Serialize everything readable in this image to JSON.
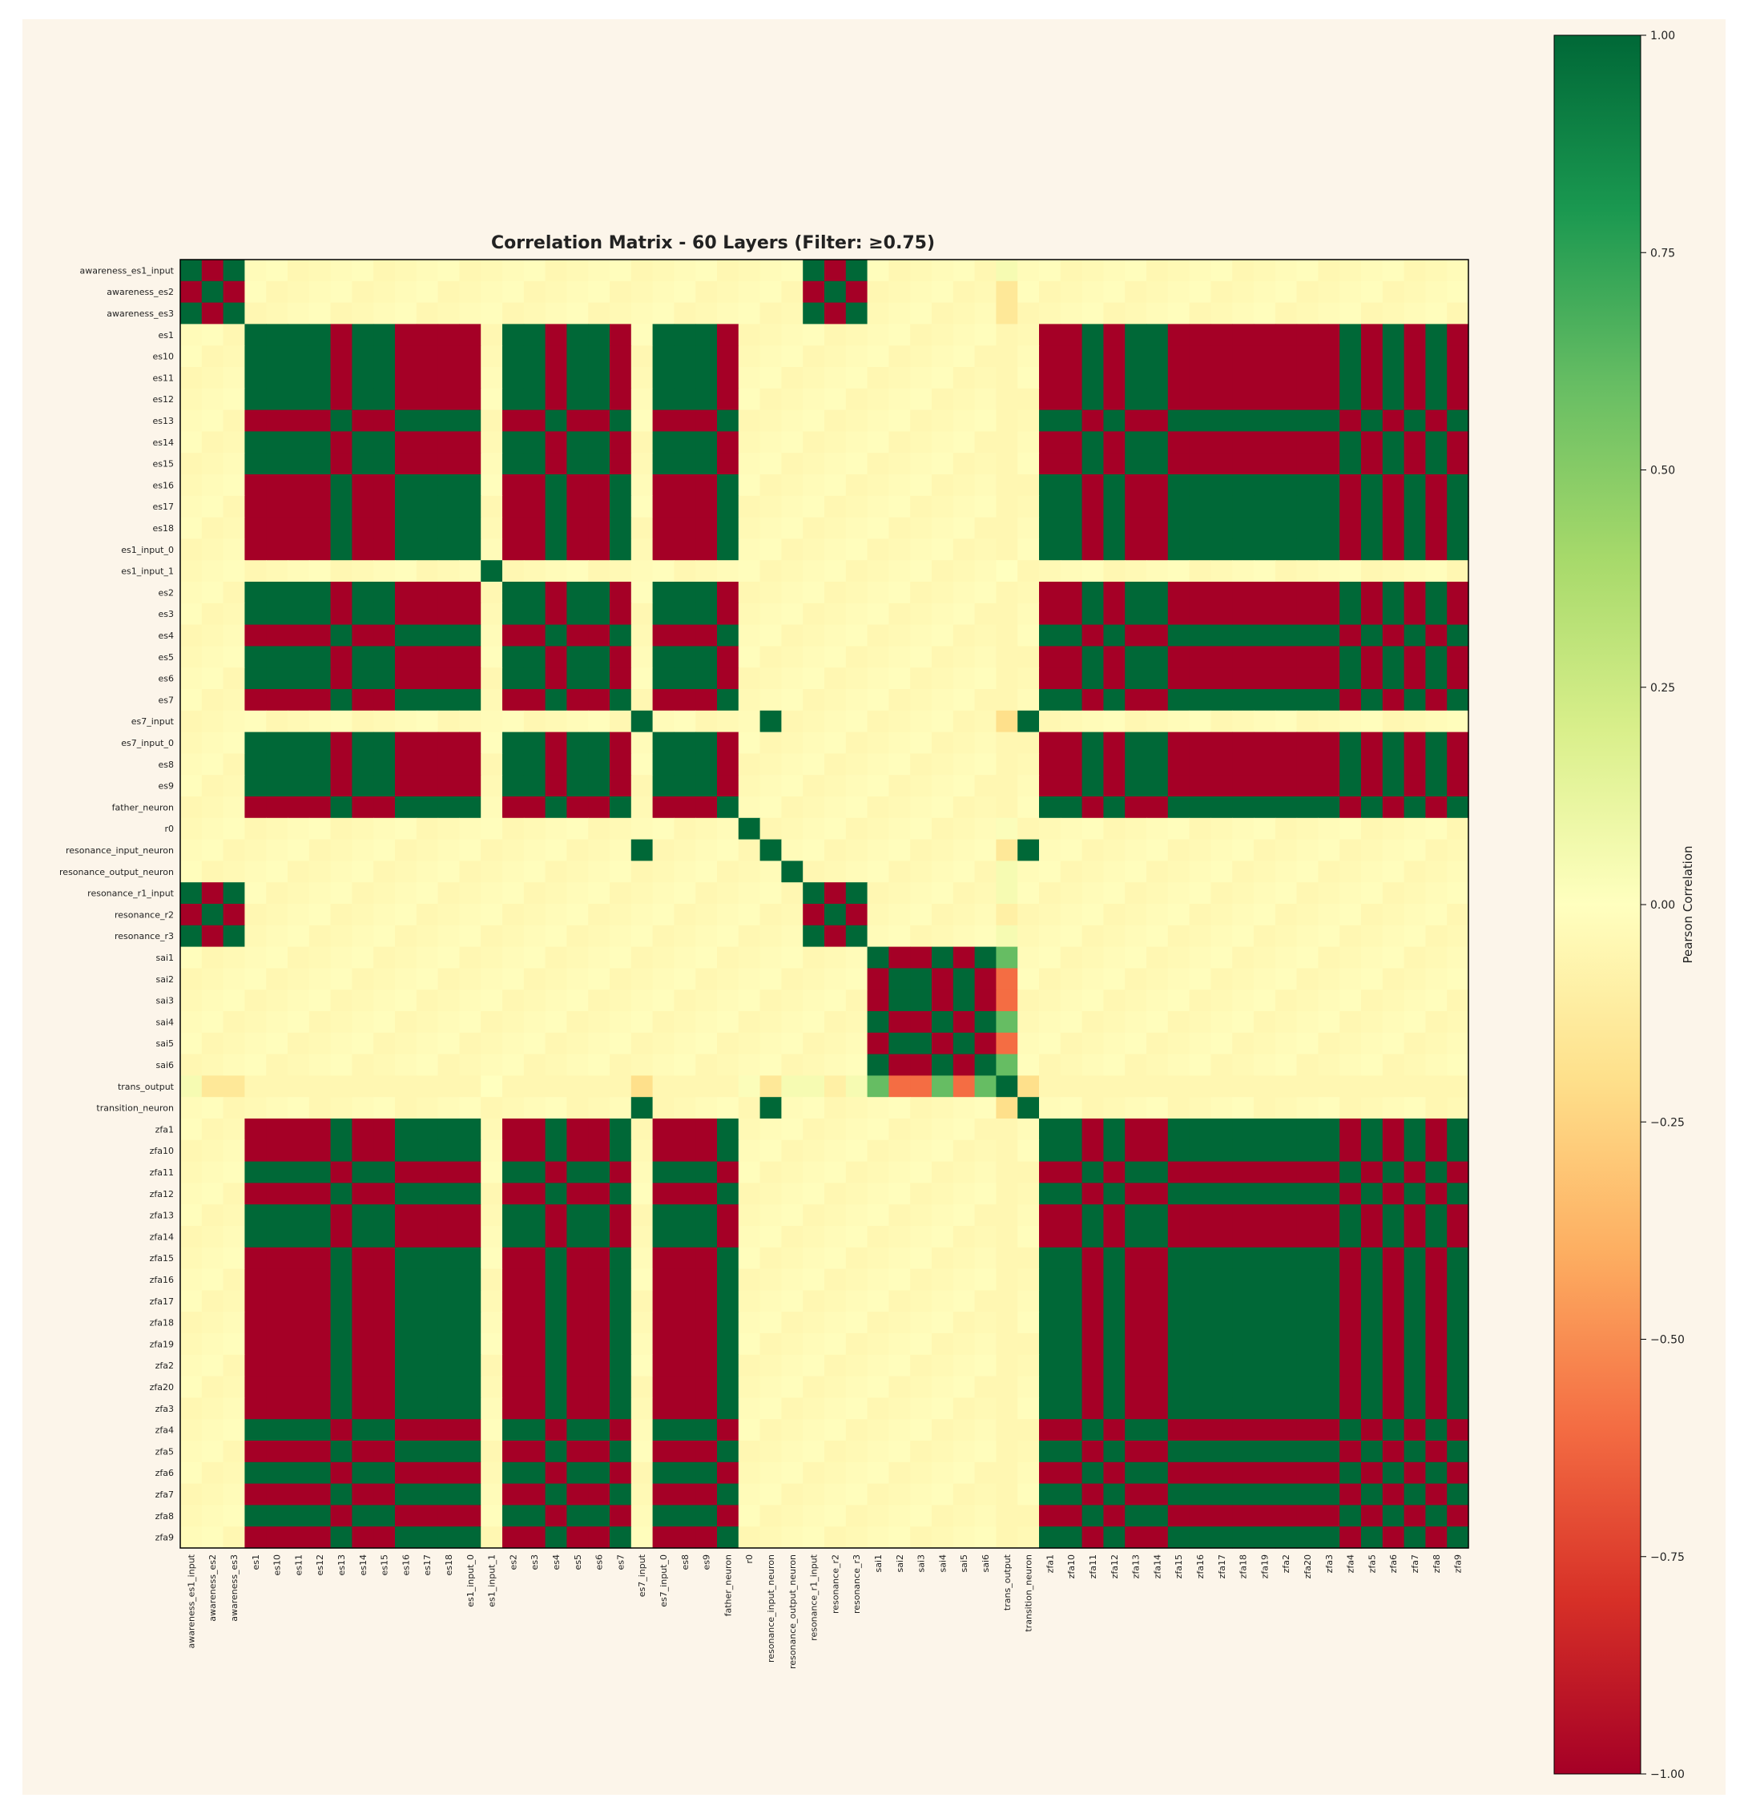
{
  "chart_data": {
    "type": "heatmap",
    "title": "Correlation Matrix - 60 Layers (Filter: ≥0.75)",
    "colorbar": {
      "label": "Pearson Correlation",
      "range": [
        -1.0,
        1.0
      ],
      "ticks": [
        1.0,
        0.75,
        0.5,
        0.25,
        0.0,
        -0.25,
        -0.5,
        -0.75,
        -1.0
      ],
      "tick_labels": [
        "1.00",
        "0.75",
        "0.50",
        "0.25",
        "0.00",
        "−0.25",
        "−0.50",
        "−0.75",
        "−1.00"
      ],
      "colormap": "RdYlGn",
      "colors": [
        "#a50026",
        "#d73027",
        "#f46d43",
        "#fdae61",
        "#fee08b",
        "#ffffbf",
        "#d9ef8b",
        "#a6d96a",
        "#66bd63",
        "#1a9850",
        "#006837"
      ]
    },
    "row_labels": [
      "awareness_es1_input",
      "awareness_es2",
      "awareness_es3",
      "es1",
      "es10",
      "es11",
      "es12",
      "es13",
      "es14",
      "es15",
      "es16",
      "es17",
      "es18",
      "es1_input_0",
      "es1_input_1",
      "es2",
      "es3",
      "es4",
      "es5",
      "es6",
      "es7",
      "es7_input",
      "es7_input_0",
      "es8",
      "es9",
      "father_neuron",
      "r0",
      "resonance_input_neuron",
      "resonance_output_neuron",
      "resonance_r1_input",
      "resonance_r2",
      "resonance_r3",
      "sai1",
      "sai2",
      "sai3",
      "sai4",
      "sai5",
      "sai6",
      "trans_output",
      "transition_neuron",
      "zfa1",
      "zfa10",
      "zfa11",
      "zfa12",
      "zfa13",
      "zfa14",
      "zfa15",
      "zfa16",
      "zfa17",
      "zfa18",
      "zfa19",
      "zfa2",
      "zfa20",
      "zfa3",
      "zfa4",
      "zfa5",
      "zfa6",
      "zfa7",
      "zfa8",
      "zfa9"
    ],
    "col_labels": [
      "awareness_es1_input",
      "awareness_es2",
      "awareness_es3",
      "es1",
      "es10",
      "es11",
      "es12",
      "es13",
      "es14",
      "es15",
      "es16",
      "es17",
      "es18",
      "es1_input_0",
      "es1_input_1",
      "es2",
      "es3",
      "es4",
      "es5",
      "es6",
      "es7",
      "es7_input",
      "es7_input_0",
      "es8",
      "es9",
      "father_neuron",
      "r0",
      "resonance_input_neuron",
      "resonance_output_neuron",
      "resonance_r1_input",
      "resonance_r2",
      "resonance_r3",
      "sai1",
      "sai2",
      "sai3",
      "sai4",
      "sai5",
      "sai6",
      "trans_output",
      "transition_neuron",
      "zfa1",
      "zfa10",
      "zfa11",
      "zfa12",
      "zfa13",
      "zfa14",
      "zfa15",
      "zfa16",
      "zfa17",
      "zfa18",
      "zfa19",
      "zfa2",
      "zfa20",
      "zfa3",
      "zfa4",
      "zfa5",
      "zfa6",
      "zfa7",
      "zfa8",
      "zfa9"
    ],
    "blocks": {
      "A": {
        "members": [
          0,
          1,
          2,
          29,
          30,
          31
        ],
        "signs": [
          1,
          -1,
          1,
          1,
          -1,
          1
        ]
      },
      "B": {
        "members": [
          3,
          4,
          5,
          6,
          7,
          8,
          9,
          10,
          11,
          12,
          13,
          15,
          16,
          17,
          18,
          19,
          20,
          22,
          23,
          24,
          25,
          40,
          41,
          42,
          43,
          44,
          45,
          46,
          47,
          48,
          49,
          50,
          51,
          52,
          53,
          54,
          55,
          56,
          57,
          58,
          59
        ],
        "signs": [
          1,
          1,
          1,
          1,
          -1,
          1,
          1,
          -1,
          -1,
          -1,
          -1,
          1,
          1,
          -1,
          1,
          1,
          -1,
          1,
          1,
          1,
          -1,
          -1,
          -1,
          1,
          -1,
          1,
          1,
          -1,
          -1,
          -1,
          -1,
          -1,
          -1,
          -1,
          -1,
          1,
          -1,
          1,
          -1,
          1,
          -1
        ]
      },
      "C": {
        "members": [
          32,
          33,
          34,
          35,
          36,
          37
        ],
        "signs": [
          1,
          -1,
          -1,
          1,
          -1,
          1
        ]
      },
      "D": {
        "members": [
          21,
          27,
          39
        ],
        "signs": [
          1,
          1,
          1
        ]
      }
    },
    "trans_output_row": [
      0.05,
      -0.15,
      -0.15,
      -0.05,
      -0.05,
      -0.05,
      -0.05,
      -0.05,
      -0.05,
      -0.05,
      -0.05,
      -0.05,
      -0.05,
      -0.05,
      0.0,
      -0.05,
      -0.05,
      -0.05,
      -0.05,
      -0.05,
      -0.05,
      -0.2,
      -0.05,
      -0.05,
      -0.05,
      -0.05,
      0.02,
      -0.15,
      0.05,
      0.05,
      -0.1,
      0.05,
      0.6,
      -0.6,
      -0.6,
      0.6,
      -0.6,
      0.6,
      1.0,
      -0.2,
      -0.05,
      -0.05,
      -0.05,
      -0.05,
      -0.05,
      -0.05,
      -0.05,
      -0.05,
      -0.05,
      -0.05,
      -0.05,
      -0.05,
      -0.05,
      -0.05,
      -0.05,
      -0.05,
      -0.05,
      -0.05,
      -0.05,
      -0.05
    ],
    "diagonal": 1.0,
    "background_value": -0.03
  }
}
